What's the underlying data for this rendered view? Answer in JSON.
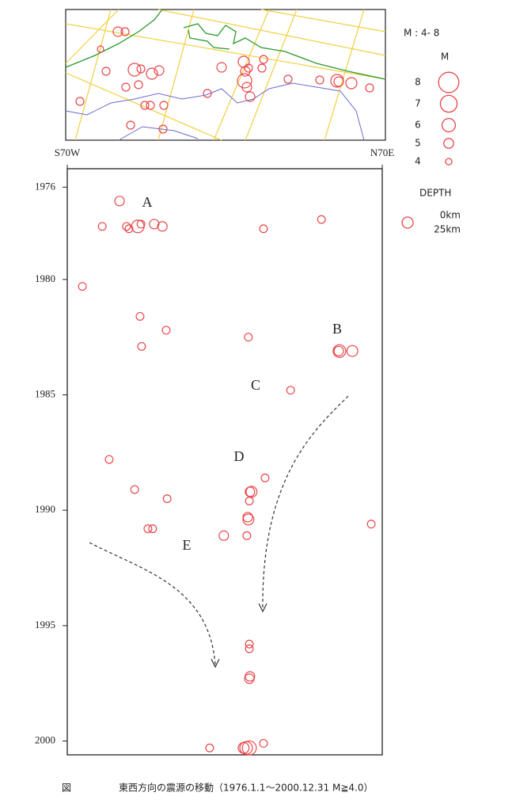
{
  "chart_data": {
    "type": "scatter",
    "caption_label": "図",
    "caption": "東西方向の震源の移動（1976.1.1～2000.12.31 M≧4.0）",
    "xlim": [
      0,
      100
    ],
    "xticks": [
      {
        "value": 0,
        "label": "S70W"
      },
      {
        "value": 100,
        "label": "N70E"
      }
    ],
    "ylim": [
      1975.2,
      2000.6
    ],
    "y_direction": "down",
    "yticks": [
      1976,
      1980,
      1985,
      1990,
      1995,
      2000
    ],
    "color": "#e8454a",
    "series": [
      {
        "name": "M",
        "x": [
          16.6,
          11.1,
          18.8,
          19.6,
          22.4,
          23.4,
          27.6,
          30.2,
          62.3,
          80.7,
          4.8,
          23.1,
          31.4,
          23.6,
          57.5,
          86.4,
          86.2,
          90.5,
          70.9,
          13.3,
          62.8,
          21.4,
          58.0,
          58.5,
          31.7,
          57.8,
          57.3,
          57.5,
          25.6,
          27.1,
          96.5,
          49.7,
          57.0,
          57.8,
          57.8,
          58.0,
          57.8,
          45.2,
          56.8,
          57.8,
          56.0,
          62.3
        ],
        "values": [
          1976.6,
          1977.7,
          1977.7,
          1977.8,
          1977.7,
          1977.6,
          1977.6,
          1977.7,
          1977.8,
          1977.4,
          1980.3,
          1981.6,
          1982.2,
          1982.9,
          1982.5,
          1983.1,
          1983.1,
          1983.1,
          1984.8,
          1987.8,
          1988.6,
          1989.1,
          1989.2,
          1989.2,
          1989.5,
          1989.6,
          1990.3,
          1990.4,
          1990.8,
          1990.8,
          1990.6,
          1991.1,
          1991.1,
          1995.8,
          1996.0,
          1997.2,
          1997.3,
          2000.3,
          2000.3,
          2000.3,
          2000.3,
          2000.1
        ],
        "size": [
          4.9,
          4.4,
          4.4,
          4.4,
          5.8,
          4.4,
          4.9,
          4.9,
          4.4,
          4.4,
          4.4,
          4.4,
          4.4,
          4.4,
          4.4,
          5.8,
          4.9,
          5.3,
          4.4,
          4.4,
          4.4,
          4.4,
          4.9,
          5.3,
          4.4,
          4.4,
          4.9,
          5.3,
          4.4,
          4.4,
          4.4,
          4.9,
          4.4,
          4.4,
          4.4,
          4.9,
          4.9,
          4.4,
          5.8,
          6.2,
          5.3,
          4.4
        ]
      }
    ],
    "size_legend_title": "M : 4- 8",
    "size_legend_header": "M",
    "size_legend": [
      8,
      7,
      6,
      5,
      4
    ],
    "depth_legend_title": "DEPTH",
    "depth_legend": [
      "0km",
      "25km"
    ],
    "annotations": [
      "A",
      "B",
      "C",
      "D",
      "E"
    ]
  }
}
